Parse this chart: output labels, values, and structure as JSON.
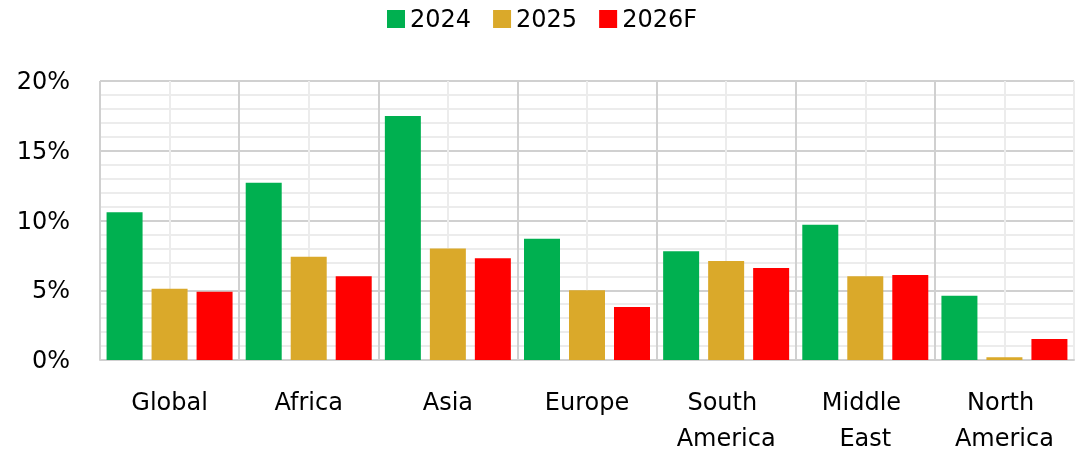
{
  "chart_data": {
    "type": "bar",
    "categories": [
      "Global",
      "Africa",
      "Asia",
      "Europe",
      "South America",
      "Middle East",
      "North America"
    ],
    "series": [
      {
        "name": "2024",
        "color": "#00b050",
        "values": [
          10.6,
          12.7,
          17.5,
          8.7,
          7.8,
          9.7,
          4.6
        ]
      },
      {
        "name": "2025",
        "color": "#daa92a",
        "values": [
          5.1,
          7.4,
          8.0,
          5.0,
          7.1,
          6.0,
          0.2
        ]
      },
      {
        "name": "2026F",
        "color": "#ff0000",
        "values": [
          4.9,
          6.0,
          7.3,
          3.8,
          6.6,
          6.1,
          1.5
        ]
      }
    ],
    "ylim": [
      0,
      20
    ],
    "yticks": [
      {
        "value": 0,
        "label": "0%"
      },
      {
        "value": 5,
        "label": "5%"
      },
      {
        "value": 10,
        "label": "10%"
      },
      {
        "value": 15,
        "label": "15%"
      },
      {
        "value": 20,
        "label": "20%"
      }
    ],
    "grid": true,
    "legend": "top"
  }
}
